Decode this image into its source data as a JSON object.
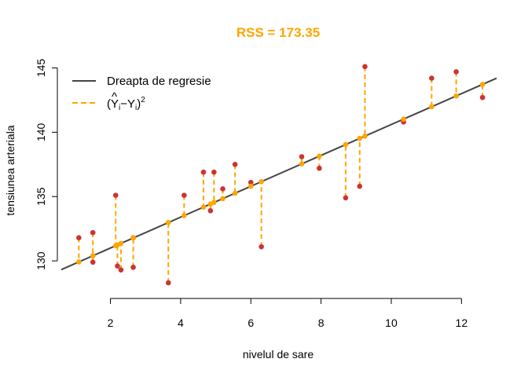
{
  "chart_data": {
    "type": "scatter",
    "title": "RSS = 173.35",
    "xlabel": "nivelul de sare",
    "ylabel": "tensiunea arteriala",
    "xlim": [
      0.6,
      13.0
    ],
    "ylim": [
      129.4,
      145.7
    ],
    "xticks": [
      2,
      4,
      6,
      8,
      10,
      12
    ],
    "yticks": [
      130,
      135,
      140,
      145
    ],
    "regression": {
      "intercept": 128.6,
      "slope": 1.2
    },
    "legend": {
      "position": "top-left",
      "line_label": "Dreapta de regresie",
      "resid_label": {
        "open": "(",
        "yhat": "Y",
        "hat": "^",
        "sub_i": "i",
        "minus": "−",
        "y": "Y",
        "close": ")",
        "sup": "2"
      }
    },
    "colors": {
      "observed": "#cd3333",
      "fitted": "#ffa500",
      "line": "#444444",
      "title": "#ffa500"
    },
    "points": [
      {
        "x": 1.1,
        "y": 131.8
      },
      {
        "x": 1.5,
        "y": 132.2
      },
      {
        "x": 1.5,
        "y": 129.9
      },
      {
        "x": 2.15,
        "y": 135.1
      },
      {
        "x": 2.2,
        "y": 129.6
      },
      {
        "x": 2.3,
        "y": 129.3
      },
      {
        "x": 2.65,
        "y": 131.8
      },
      {
        "x": 2.65,
        "y": 129.5
      },
      {
        "x": 3.65,
        "y": 128.3
      },
      {
        "x": 4.1,
        "y": 135.1
      },
      {
        "x": 4.65,
        "y": 136.9
      },
      {
        "x": 4.85,
        "y": 133.9
      },
      {
        "x": 4.95,
        "y": 136.9
      },
      {
        "x": 5.2,
        "y": 135.6
      },
      {
        "x": 5.55,
        "y": 137.5
      },
      {
        "x": 6.0,
        "y": 136.1
      },
      {
        "x": 6.3,
        "y": 131.1
      },
      {
        "x": 7.45,
        "y": 138.1
      },
      {
        "x": 7.95,
        "y": 137.2
      },
      {
        "x": 8.7,
        "y": 134.9
      },
      {
        "x": 9.1,
        "y": 135.8
      },
      {
        "x": 9.25,
        "y": 145.1
      },
      {
        "x": 10.35,
        "y": 140.8
      },
      {
        "x": 11.15,
        "y": 144.2
      },
      {
        "x": 11.85,
        "y": 144.7
      },
      {
        "x": 12.6,
        "y": 142.7
      }
    ]
  }
}
